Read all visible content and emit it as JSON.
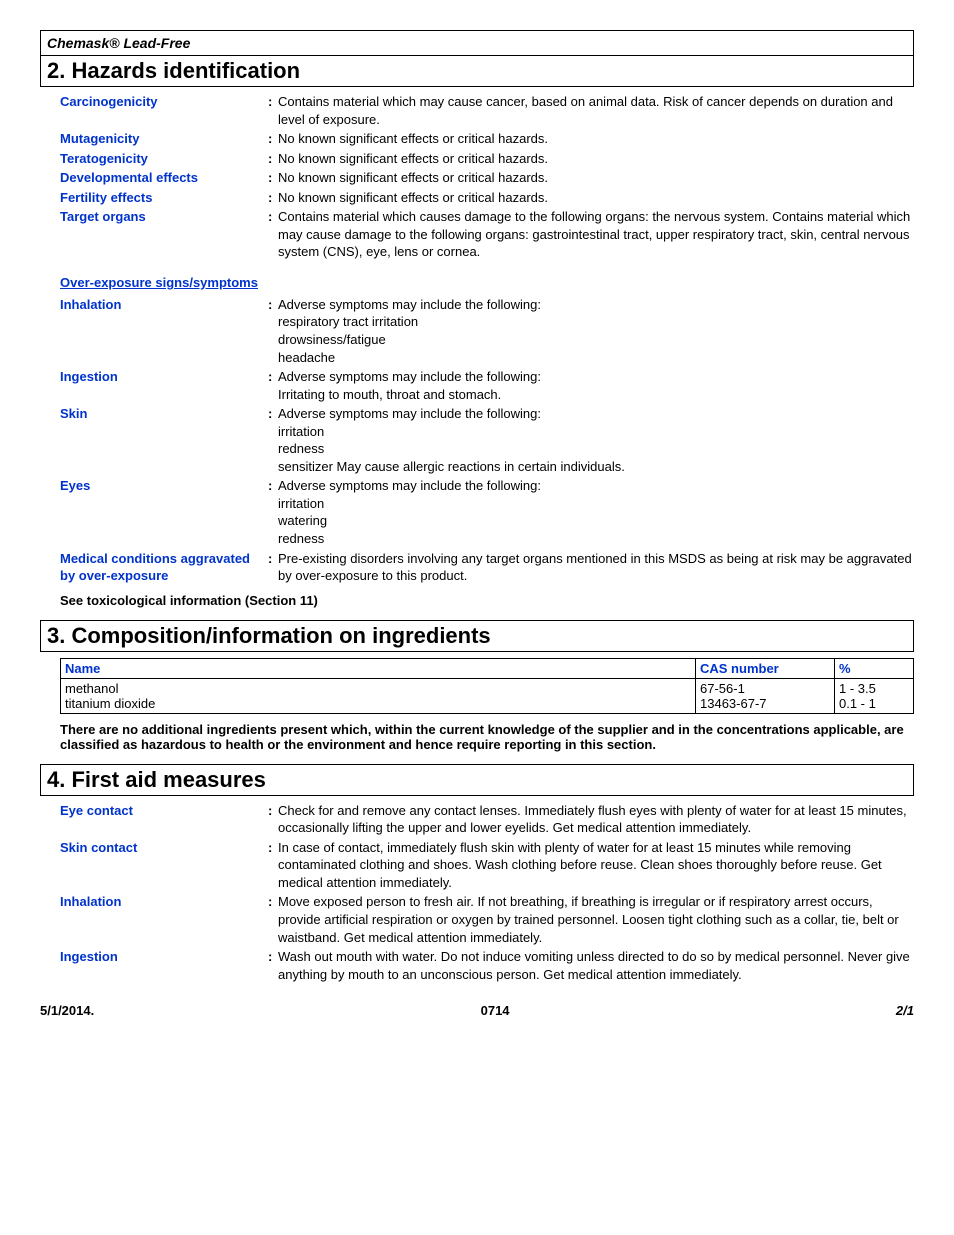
{
  "product_name": "Chemask® Lead-Free",
  "section2": {
    "title": "2. Hazards identification",
    "fields": [
      {
        "label": "Carcinogenicity",
        "value": "Contains material which may cause cancer, based on animal data.  Risk of cancer depends on duration and level of exposure."
      },
      {
        "label": "Mutagenicity",
        "value": "No known significant effects or critical hazards."
      },
      {
        "label": "Teratogenicity",
        "value": "No known significant effects or critical hazards."
      },
      {
        "label": "Developmental effects",
        "value": "No known significant effects or critical hazards."
      },
      {
        "label": "Fertility effects",
        "value": "No known significant effects or critical hazards."
      },
      {
        "label": "Target organs",
        "value": "Contains material which causes damage to the following organs: the nervous system. Contains material which may cause damage to the following organs: gastrointestinal tract, upper respiratory tract, skin, central nervous system (CNS), eye, lens or cornea."
      }
    ],
    "subheading": "Over-exposure signs/symptoms",
    "symptoms": [
      {
        "label": "Inhalation",
        "value": "Adverse symptoms may include the following:\nrespiratory tract irritation\ndrowsiness/fatigue\nheadache"
      },
      {
        "label": "Ingestion",
        "value": "Adverse symptoms may include the following:\nIrritating to mouth, throat and stomach."
      },
      {
        "label": "Skin",
        "value": "Adverse symptoms may include the following:\nirritation\nredness\nsensitizer May cause allergic reactions in certain individuals."
      },
      {
        "label": "Eyes",
        "value": "Adverse symptoms may include the following:\nirritation\nwatering\nredness"
      },
      {
        "label": "Medical conditions aggravated by over-exposure",
        "value": "Pre-existing disorders involving any target organs mentioned in this MSDS as being at risk may be aggravated by over-exposure to this product."
      }
    ],
    "footnote": "See toxicological information (Section 11)"
  },
  "section3": {
    "title": "3. Composition/information on ingredients",
    "columns": {
      "name": "Name",
      "cas": "CAS number",
      "pct": "%"
    },
    "rows": [
      {
        "name": "methanol",
        "cas": "67-56-1",
        "pct": "1 - 3.5"
      },
      {
        "name": "titanium dioxide",
        "cas": "13463-67-7",
        "pct": "0.1 - 1"
      }
    ],
    "disclaimer": "There are no additional ingredients present which, within the current knowledge of the supplier and in the concentrations applicable, are classified as hazardous to health or the environment and hence require reporting in this section."
  },
  "section4": {
    "title": "4. First aid measures",
    "fields": [
      {
        "label": "Eye contact",
        "value": "Check for and remove any contact lenses.  Immediately flush eyes with plenty of water for at least 15 minutes, occasionally lifting the upper and lower eyelids.  Get medical attention immediately."
      },
      {
        "label": "Skin contact",
        "value": "In case of contact, immediately flush skin with plenty of water for at least 15 minutes while removing contaminated clothing and shoes.  Wash clothing before reuse.  Clean shoes thoroughly before reuse.  Get medical attention immediately."
      },
      {
        "label": "Inhalation",
        "value": "Move exposed person to fresh air.  If not breathing, if breathing is irregular or if respiratory arrest occurs, provide artificial respiration or oxygen by trained personnel.  Loosen tight clothing such as a collar, tie, belt or waistband.  Get medical attention immediately."
      },
      {
        "label": "Ingestion",
        "value": "Wash out mouth with water.  Do not induce vomiting unless directed to do so by medical personnel.  Never give anything by mouth to an unconscious person.  Get medical attention immediately."
      }
    ]
  },
  "footer": {
    "date": "5/1/2014.",
    "code": "0714",
    "page": "2/1"
  }
}
